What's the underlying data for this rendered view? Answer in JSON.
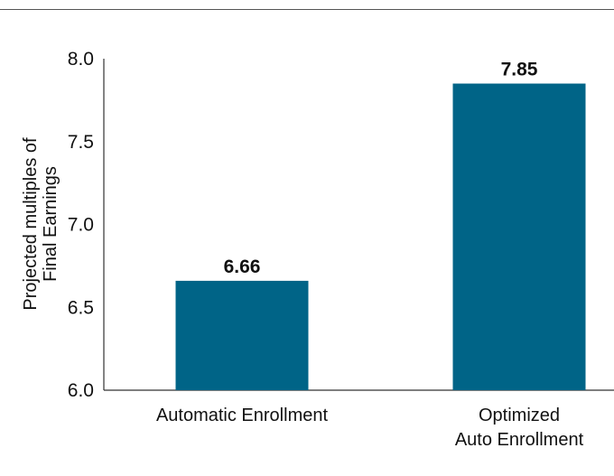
{
  "chart_data": {
    "type": "bar",
    "title": "",
    "xlabel": "",
    "ylabel_lines": [
      "Projected multiples of",
      "Final Earnings"
    ],
    "categories": [
      [
        "Automatic Enrollment"
      ],
      [
        "Optimized",
        "Auto Enrollment"
      ]
    ],
    "values": [
      6.66,
      7.85
    ],
    "value_labels": [
      "6.66",
      "7.85"
    ],
    "ylim": [
      6.0,
      8.0
    ],
    "yticks": [
      6.0,
      6.5,
      7.0,
      7.5,
      8.0
    ],
    "ytick_labels": [
      "6.0",
      "6.5",
      "7.0",
      "7.5",
      "8.0"
    ],
    "bar_color": "#006487",
    "grid": false,
    "legend": "none"
  }
}
